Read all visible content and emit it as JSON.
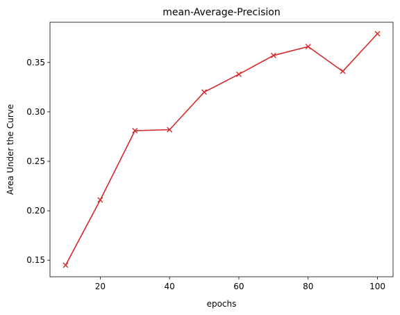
{
  "chart_data": {
    "type": "line",
    "title": "mean-Average-Precision",
    "xlabel": "epochs",
    "ylabel": "Area Under the Curve",
    "xlim": [
      5.5,
      104.5
    ],
    "ylim": [
      0.1333,
      0.3906
    ],
    "x_ticks": [
      20,
      40,
      60,
      80,
      100
    ],
    "y_ticks": [
      0.15,
      0.2,
      0.25,
      0.3,
      0.35
    ],
    "y_tick_labels": [
      "0.15",
      "0.20",
      "0.25",
      "0.30",
      "0.35"
    ],
    "grid": false,
    "legend": "none",
    "series": [
      {
        "color": "#d62728",
        "marker": "x",
        "x": [
          10,
          20,
          30,
          40,
          50,
          60,
          70,
          80,
          90,
          100
        ],
        "y": [
          0.145,
          0.211,
          0.281,
          0.282,
          0.32,
          0.338,
          0.357,
          0.366,
          0.341,
          0.379
        ]
      }
    ]
  }
}
